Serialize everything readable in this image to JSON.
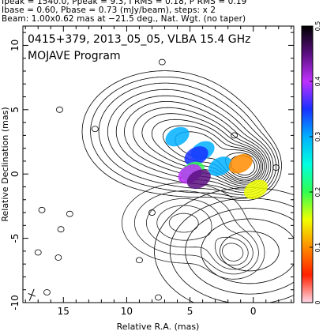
{
  "header": {
    "line1": "Ipeak = 1540.0, Ppeak = 9.3, I RMS = 0.18, P RMS = 0.19",
    "line2": "Ibase = 0.60, Pbase = 0.73 (mJy/beam), steps: x 2",
    "line3": "Beam: 1.00x0.62 mas at −21.5 deg., Nat. Wgt. (no taper)"
  },
  "chart_data": {
    "type": "contour",
    "title": "0415+379, 2013_05_05, VLBA 15.4 GHz",
    "subtitle": "MOJAVE Program",
    "xlabel": "Relative R.A. (mas)",
    "ylabel": "Relative Declination (mas)",
    "xlim": [
      18.2,
      -3.2
    ],
    "ylim": [
      -10,
      11.5
    ],
    "xticks": [
      15,
      10,
      5,
      0
    ],
    "yticks": [
      10,
      5,
      0,
      -5,
      -10
    ],
    "colorbar": {
      "range": [
        0,
        0.5
      ],
      "ticks": [
        0.5,
        0.4,
        0.3,
        0.2,
        0.1,
        0.0
      ],
      "tick_labels": [
        "0.5",
        "0.4",
        "0.3",
        "0.2",
        "0.1",
        "0"
      ],
      "colors": [
        "#000000",
        "#5a0f80",
        "#c030ff",
        "#1830ff",
        "#00b0ff",
        "#00ffe0",
        "#30ff50",
        "#f0ff00",
        "#ff8c00",
        "#ff2000",
        "#ffd8e8"
      ]
    },
    "stokes_i_components": [
      {
        "x": 7.0,
        "y": 3.3,
        "sx": 2.9,
        "sy": 2.1
      },
      {
        "x": 3.6,
        "y": 1.9,
        "sx": 2.0,
        "sy": 1.5
      },
      {
        "x": 1.0,
        "y": 0.6,
        "sx": 1.2,
        "sy": 1.0
      },
      {
        "x": 0.3,
        "y": 0.5,
        "sx": 1.0,
        "sy": 1.0
      },
      {
        "x": 0.3,
        "y": -6.0,
        "sx": 3.5,
        "sy": 2.3
      }
    ],
    "polarization_components": [
      {
        "x": 5.5,
        "y": -3.8,
        "sx": 2.5,
        "sy": 1.6
      },
      {
        "x": 1.5,
        "y": -6.2,
        "sx": 1.2,
        "sy": 1.0
      }
    ],
    "isolated_specks": [
      {
        "x": 12.5,
        "y": 3.5
      },
      {
        "x": 15.3,
        "y": 5.0
      },
      {
        "x": 16.7,
        "y": -2.8
      },
      {
        "x": 15.2,
        "y": -4.3
      },
      {
        "x": 17.0,
        "y": -6.1
      },
      {
        "x": 14.5,
        "y": -3.1
      },
      {
        "x": 8.0,
        "y": -3.0
      },
      {
        "x": 7.5,
        "y": -9.6
      },
      {
        "x": 16.3,
        "y": -9.2
      },
      {
        "x": 7.2,
        "y": 8.7
      },
      {
        "x": 9.0,
        "y": -6.7
      },
      {
        "x": 15.4,
        "y": -6.5
      },
      {
        "x": -1.8,
        "y": 0.5
      },
      {
        "x": 1.5,
        "y": 3.0
      },
      {
        "x": 5.5,
        "y": -0.4
      }
    ],
    "polarized_flux_blobs": [
      {
        "x": 4.0,
        "y": 1.8,
        "v": 0.31
      },
      {
        "x": 6.0,
        "y": 2.9,
        "v": 0.28
      },
      {
        "x": 4.5,
        "y": 1.4,
        "v": 0.33
      },
      {
        "x": 4.8,
        "y": 0.2,
        "v": 0.18
      },
      {
        "x": 5.0,
        "y": 0.0,
        "v": 0.42
      },
      {
        "x": 4.3,
        "y": -0.4,
        "v": 0.47
      },
      {
        "x": 2.6,
        "y": 0.6,
        "v": 0.29
      },
      {
        "x": -0.2,
        "y": -1.2,
        "v": 0.16
      },
      {
        "x": 1.0,
        "y": 0.8,
        "v": 0.09
      }
    ],
    "beam": {
      "major_mas": 1.0,
      "minor_mas": 0.62,
      "pa_deg": -21.5
    }
  }
}
